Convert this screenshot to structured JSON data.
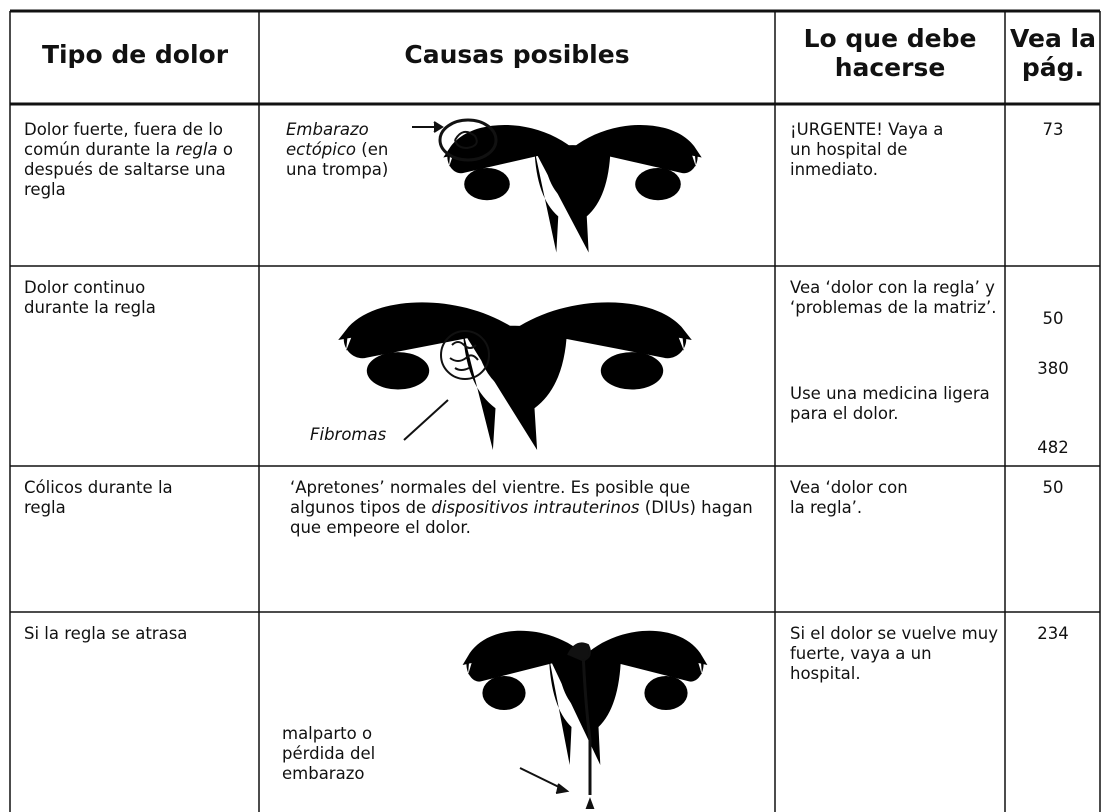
{
  "table": {
    "header": [
      "Tipo de dolor",
      "Causas  posibles",
      "Lo que debe hacerse",
      "Vea la pág."
    ],
    "rows": [
      {
        "pain": [
          "Dolor fuerte, fuera de lo común durante la",
          "regla",
          "o después de saltarse una regla"
        ],
        "cause": [
          "Embarazo ectópico",
          "(en una trompa)"
        ],
        "action": [
          "¡URGENTE! Vaya a un hospital de inmediato."
        ],
        "pages": [
          73
        ]
      },
      {
        "pain": [
          "Dolor continuo durante la regla"
        ],
        "cause": [
          "Fibromas"
        ],
        "action": [
          "Vea ‘dolor con la regla’ y ‘problemas de la matriz’.",
          "Use una medicina ligera para el dolor."
        ],
        "pages": [
          50,
          380,
          482
        ]
      },
      {
        "pain": [
          "Cólicos durante la regla"
        ],
        "cause": [
          "‘Apretones’ normales del vientre. Es posible que algunos tipos de",
          "dispositivos intrauterinos",
          "(DIUs) hagan que empeore el dolor."
        ],
        "action": [
          "Vea ‘dolor con la regla’."
        ],
        "pages": [
          50
        ]
      },
      {
        "pain": [
          "Si la regla se atrasa"
        ],
        "cause": [
          "malparto o pérdida del embarazo"
        ],
        "action": [
          "Si el dolor se vuelve muy fuerte, vaya a un hospital."
        ],
        "pages": [
          234
        ]
      }
    ]
  }
}
